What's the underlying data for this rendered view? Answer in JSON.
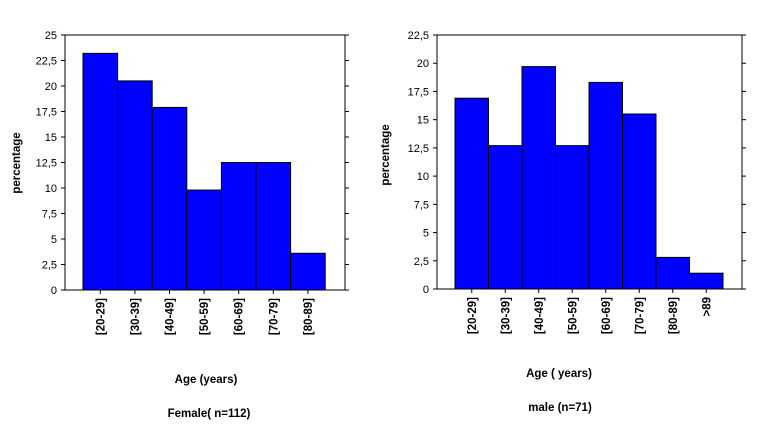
{
  "chart_data": [
    {
      "type": "bar",
      "categories": [
        "[20-29]",
        "[30-39]",
        "[40-49]",
        "[50-59]",
        "[60-69]",
        "[70-79]",
        "[80-89]"
      ],
      "values": [
        23.2,
        20.5,
        17.9,
        9.8,
        12.5,
        12.5,
        3.6
      ],
      "yticks": [
        "0",
        "2,5",
        "5",
        "7,5",
        "10",
        "12,5",
        "15",
        "17,5",
        "20",
        "22,5",
        "25"
      ],
      "ylim": [
        0,
        25
      ],
      "ylabel": "percentage",
      "xlabel": "Age (years)",
      "caption": "Female( n=112)",
      "color": "#0000ff"
    },
    {
      "type": "bar",
      "categories": [
        "[20-29]",
        "[30-39]",
        "[40-49]",
        "[50-59]",
        "[60-69]",
        "[70-79]",
        "[80-89]",
        ">89"
      ],
      "values": [
        16.9,
        12.7,
        19.7,
        12.7,
        18.3,
        15.5,
        2.8,
        1.4
      ],
      "yticks": [
        "0",
        "2,5",
        "5",
        "7,5",
        "10",
        "12,5",
        "15",
        "17,5",
        "20",
        "22,5"
      ],
      "ylim": [
        0,
        22.5
      ],
      "ylabel": "percentage",
      "xlabel": "Age ( years)",
      "caption": "male (n=71)",
      "color": "#0000ff"
    }
  ]
}
